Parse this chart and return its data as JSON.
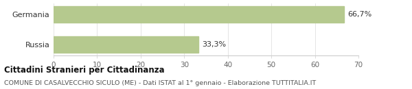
{
  "categories": [
    "Germania",
    "Russia"
  ],
  "values": [
    66.7,
    33.3
  ],
  "bar_color": "#b5c98e",
  "xlim": [
    0,
    70
  ],
  "xticks": [
    0,
    10,
    20,
    30,
    40,
    50,
    60,
    70
  ],
  "bar_labels": [
    "66,7%",
    "33,3%"
  ],
  "title_bold": "Cittadini Stranieri per Cittadinanza",
  "subtitle": "COMUNE DI CASALVECCHIO SICULO (ME) - Dati ISTAT al 1° gennaio - Elaborazione TUTTITALIA.IT",
  "background_color": "#ffffff",
  "bar_height": 0.55,
  "ylabel_fontsize": 8,
  "tick_fontsize": 7.5,
  "bar_label_fontsize": 8,
  "title_fontsize": 8.5,
  "subtitle_fontsize": 6.8,
  "grid_color": "#e0e0e0",
  "spine_color": "#cccccc",
  "text_color": "#333333",
  "subtitle_color": "#555555"
}
